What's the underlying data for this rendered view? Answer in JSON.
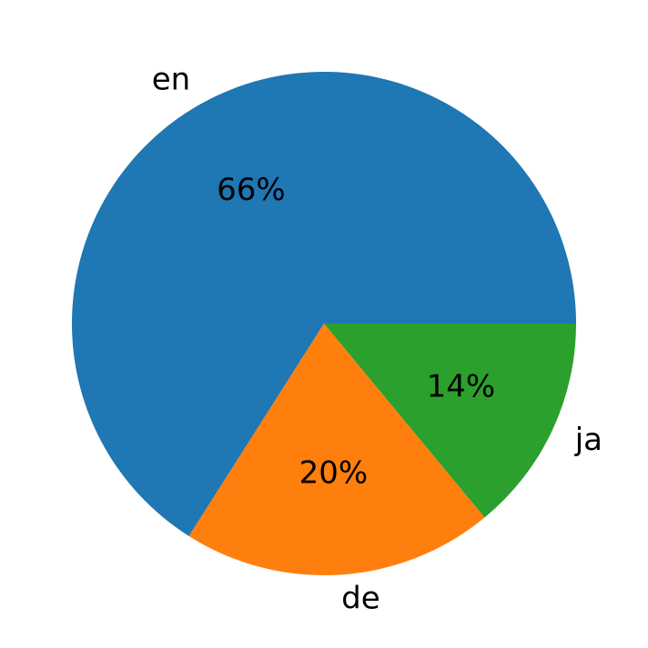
{
  "chart_data": {
    "type": "pie",
    "categories": [
      "en",
      "de",
      "ja"
    ],
    "values": [
      66,
      20,
      14
    ],
    "value_labels": [
      "66%",
      "20%",
      "14%"
    ],
    "colors": [
      "#1f77b4",
      "#ff7f0e",
      "#2ca02c"
    ]
  }
}
